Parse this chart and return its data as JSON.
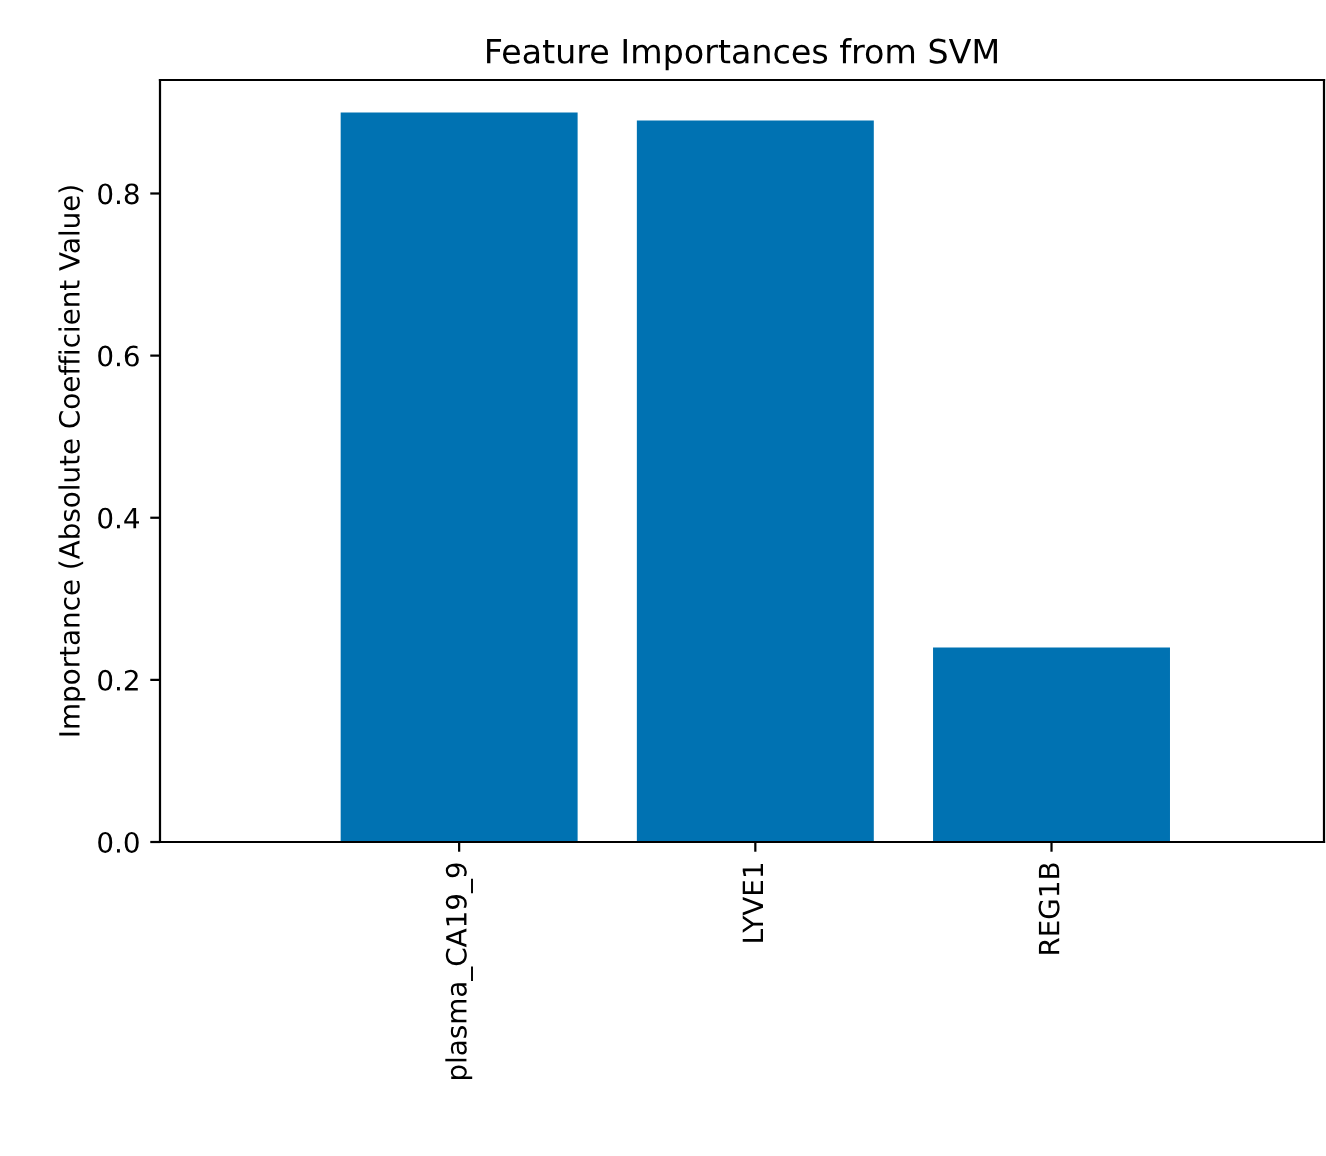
{
  "chart_data": {
    "type": "bar",
    "title": "Feature Importances from SVM",
    "ylabel": "Importance (Absolute Coefficient Value)",
    "categories": [
      "plasma_CA19_9",
      "LYVE1",
      "REG1B"
    ],
    "values": [
      0.9,
      0.89,
      0.24
    ],
    "color": "#0072b2",
    "ylim": [
      0,
      0.94
    ],
    "yticks": [
      {
        "value": 0,
        "label": "0.0"
      },
      {
        "value": 0.2,
        "label": "0.2"
      },
      {
        "value": 0.4,
        "label": "0.4"
      },
      {
        "value": 0.6,
        "label": "0.6"
      },
      {
        "value": 0.8,
        "label": "0.8"
      }
    ],
    "grid": false,
    "legend": false
  }
}
